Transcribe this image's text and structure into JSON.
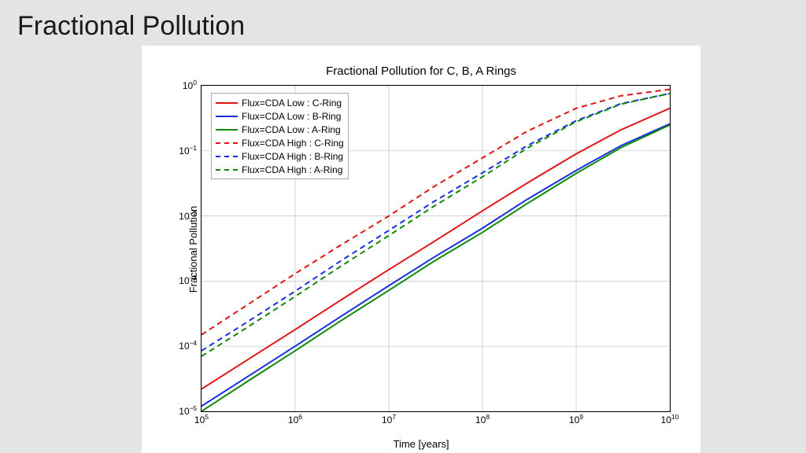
{
  "slide_title": "Fractional Pollution",
  "chart": {
    "type": "line",
    "title": "Fractional Pollution for C, B, A Rings",
    "xlabel": "Time [years]",
    "ylabel": "Fractional Pollution",
    "background_color": "#ffffff",
    "grid_color": "#c0c0c0",
    "axis_color": "#000000",
    "scale": {
      "x": "log",
      "y": "log"
    },
    "xlim": [
      100000,
      10000000000
    ],
    "ylim": [
      1e-05,
      1
    ],
    "x_ticks_exp": [
      5,
      6,
      7,
      8,
      9,
      10
    ],
    "y_ticks_exp": [
      -5,
      -4,
      -3,
      -2,
      -1,
      0
    ],
    "title_fontsize": 15,
    "label_fontsize": 13,
    "tick_fontsize": 12,
    "line_width": 2,
    "series": [
      {
        "label": "Flux=CDA Low : C-Ring",
        "color": "#e11515",
        "dash": "solid",
        "x": [
          100000.0,
          300000.0,
          1000000.0,
          3000000.0,
          10000000.0,
          30000000.0,
          100000000.0,
          300000000.0,
          1000000000.0,
          3000000000.0,
          10000000000.0
        ],
        "y": [
          2.2e-05,
          6e-05,
          0.00018,
          0.0005,
          0.0015,
          0.004,
          0.012,
          0.032,
          0.09,
          0.21,
          0.45
        ]
      },
      {
        "label": "Flux=CDA Low : B-Ring",
        "color": "#1a2fe0",
        "dash": "solid",
        "x": [
          100000.0,
          300000.0,
          1000000.0,
          3000000.0,
          10000000.0,
          30000000.0,
          100000000.0,
          300000000.0,
          1000000000.0,
          3000000000.0,
          10000000000.0
        ],
        "y": [
          1.2e-05,
          3.3e-05,
          0.0001,
          0.00028,
          0.00085,
          0.0023,
          0.0065,
          0.018,
          0.05,
          0.12,
          0.26
        ]
      },
      {
        "label": "Flux=CDA Low : A-Ring",
        "color": "#0e8a08",
        "dash": "solid",
        "x": [
          100000.0,
          300000.0,
          1000000.0,
          3000000.0,
          10000000.0,
          30000000.0,
          100000000.0,
          300000000.0,
          1000000000.0,
          3000000000.0,
          10000000000.0
        ],
        "y": [
          1e-05,
          2.8e-05,
          8.5e-05,
          0.00024,
          0.00072,
          0.002,
          0.0056,
          0.0155,
          0.045,
          0.112,
          0.25
        ]
      },
      {
        "label": "Flux=CDA High : C-Ring",
        "color": "#e11515",
        "dash": "dashed",
        "x": [
          100000.0,
          300000.0,
          1000000.0,
          3000000.0,
          10000000.0,
          30000000.0,
          100000000.0,
          300000000.0,
          1000000000.0,
          3000000000.0,
          10000000000.0
        ],
        "y": [
          0.00015,
          0.00042,
          0.0013,
          0.0035,
          0.01,
          0.028,
          0.078,
          0.2,
          0.45,
          0.7,
          0.88
        ]
      },
      {
        "label": "Flux=CDA High : B-Ring",
        "color": "#1a2fe0",
        "dash": "dashed",
        "x": [
          100000.0,
          300000.0,
          1000000.0,
          3000000.0,
          10000000.0,
          30000000.0,
          100000000.0,
          300000000.0,
          1000000000.0,
          3000000000.0,
          10000000000.0
        ],
        "y": [
          8.5e-05,
          0.00023,
          0.0007,
          0.002,
          0.006,
          0.0165,
          0.046,
          0.12,
          0.29,
          0.53,
          0.76
        ]
      },
      {
        "label": "Flux=CDA High : A-Ring",
        "color": "#0e8a08",
        "dash": "dashed",
        "x": [
          100000.0,
          300000.0,
          1000000.0,
          3000000.0,
          10000000.0,
          30000000.0,
          100000000.0,
          300000000.0,
          1000000000.0,
          3000000000.0,
          10000000000.0
        ],
        "y": [
          7e-05,
          0.00019,
          0.00058,
          0.00165,
          0.005,
          0.014,
          0.04,
          0.11,
          0.28,
          0.52,
          0.76
        ]
      }
    ]
  }
}
